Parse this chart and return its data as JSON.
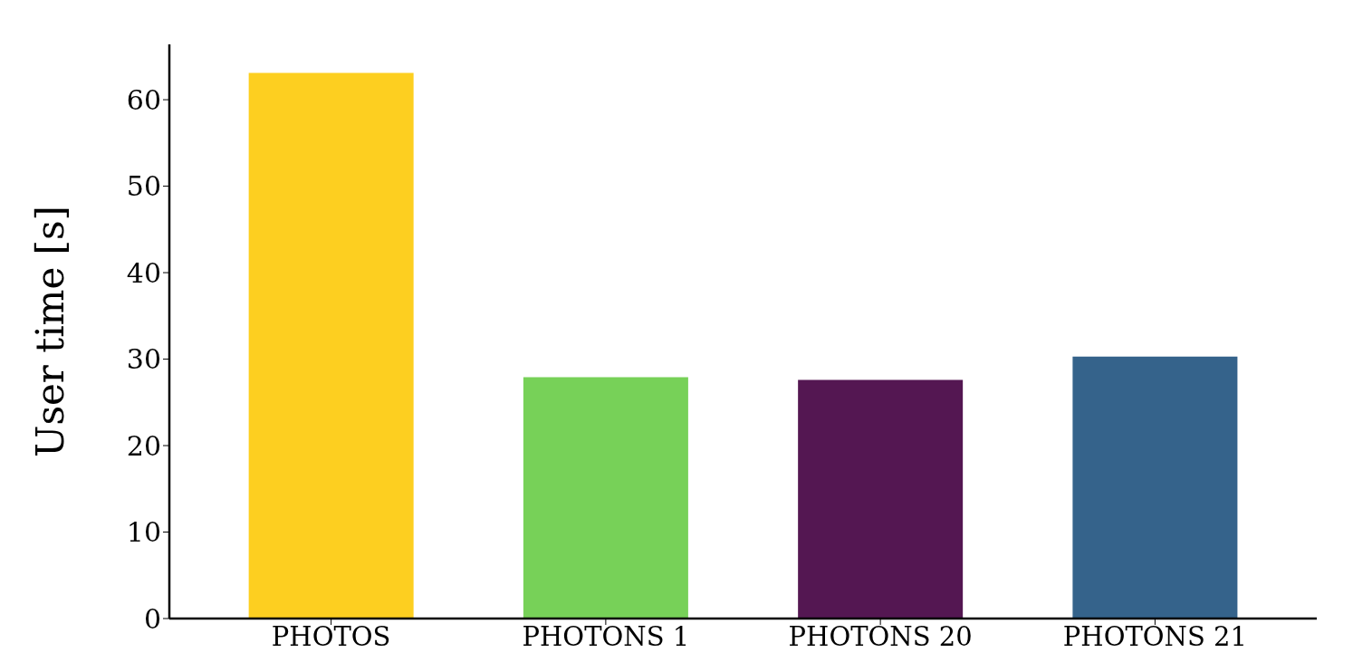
{
  "chart_data": {
    "type": "bar",
    "ylabel": "User time [s]",
    "categories": [
      "PHOTOS",
      "PHOTONS 1",
      "PHOTONS 20",
      "PHOTONS 21"
    ],
    "values": [
      63.1,
      27.9,
      27.6,
      30.3
    ],
    "colors": [
      "#fdcf20",
      "#77d158",
      "#541752",
      "#35638b"
    ],
    "ylim": [
      0,
      66.4
    ],
    "yticks": [
      0,
      10,
      20,
      30,
      40,
      50,
      60
    ],
    "grid": false
  }
}
